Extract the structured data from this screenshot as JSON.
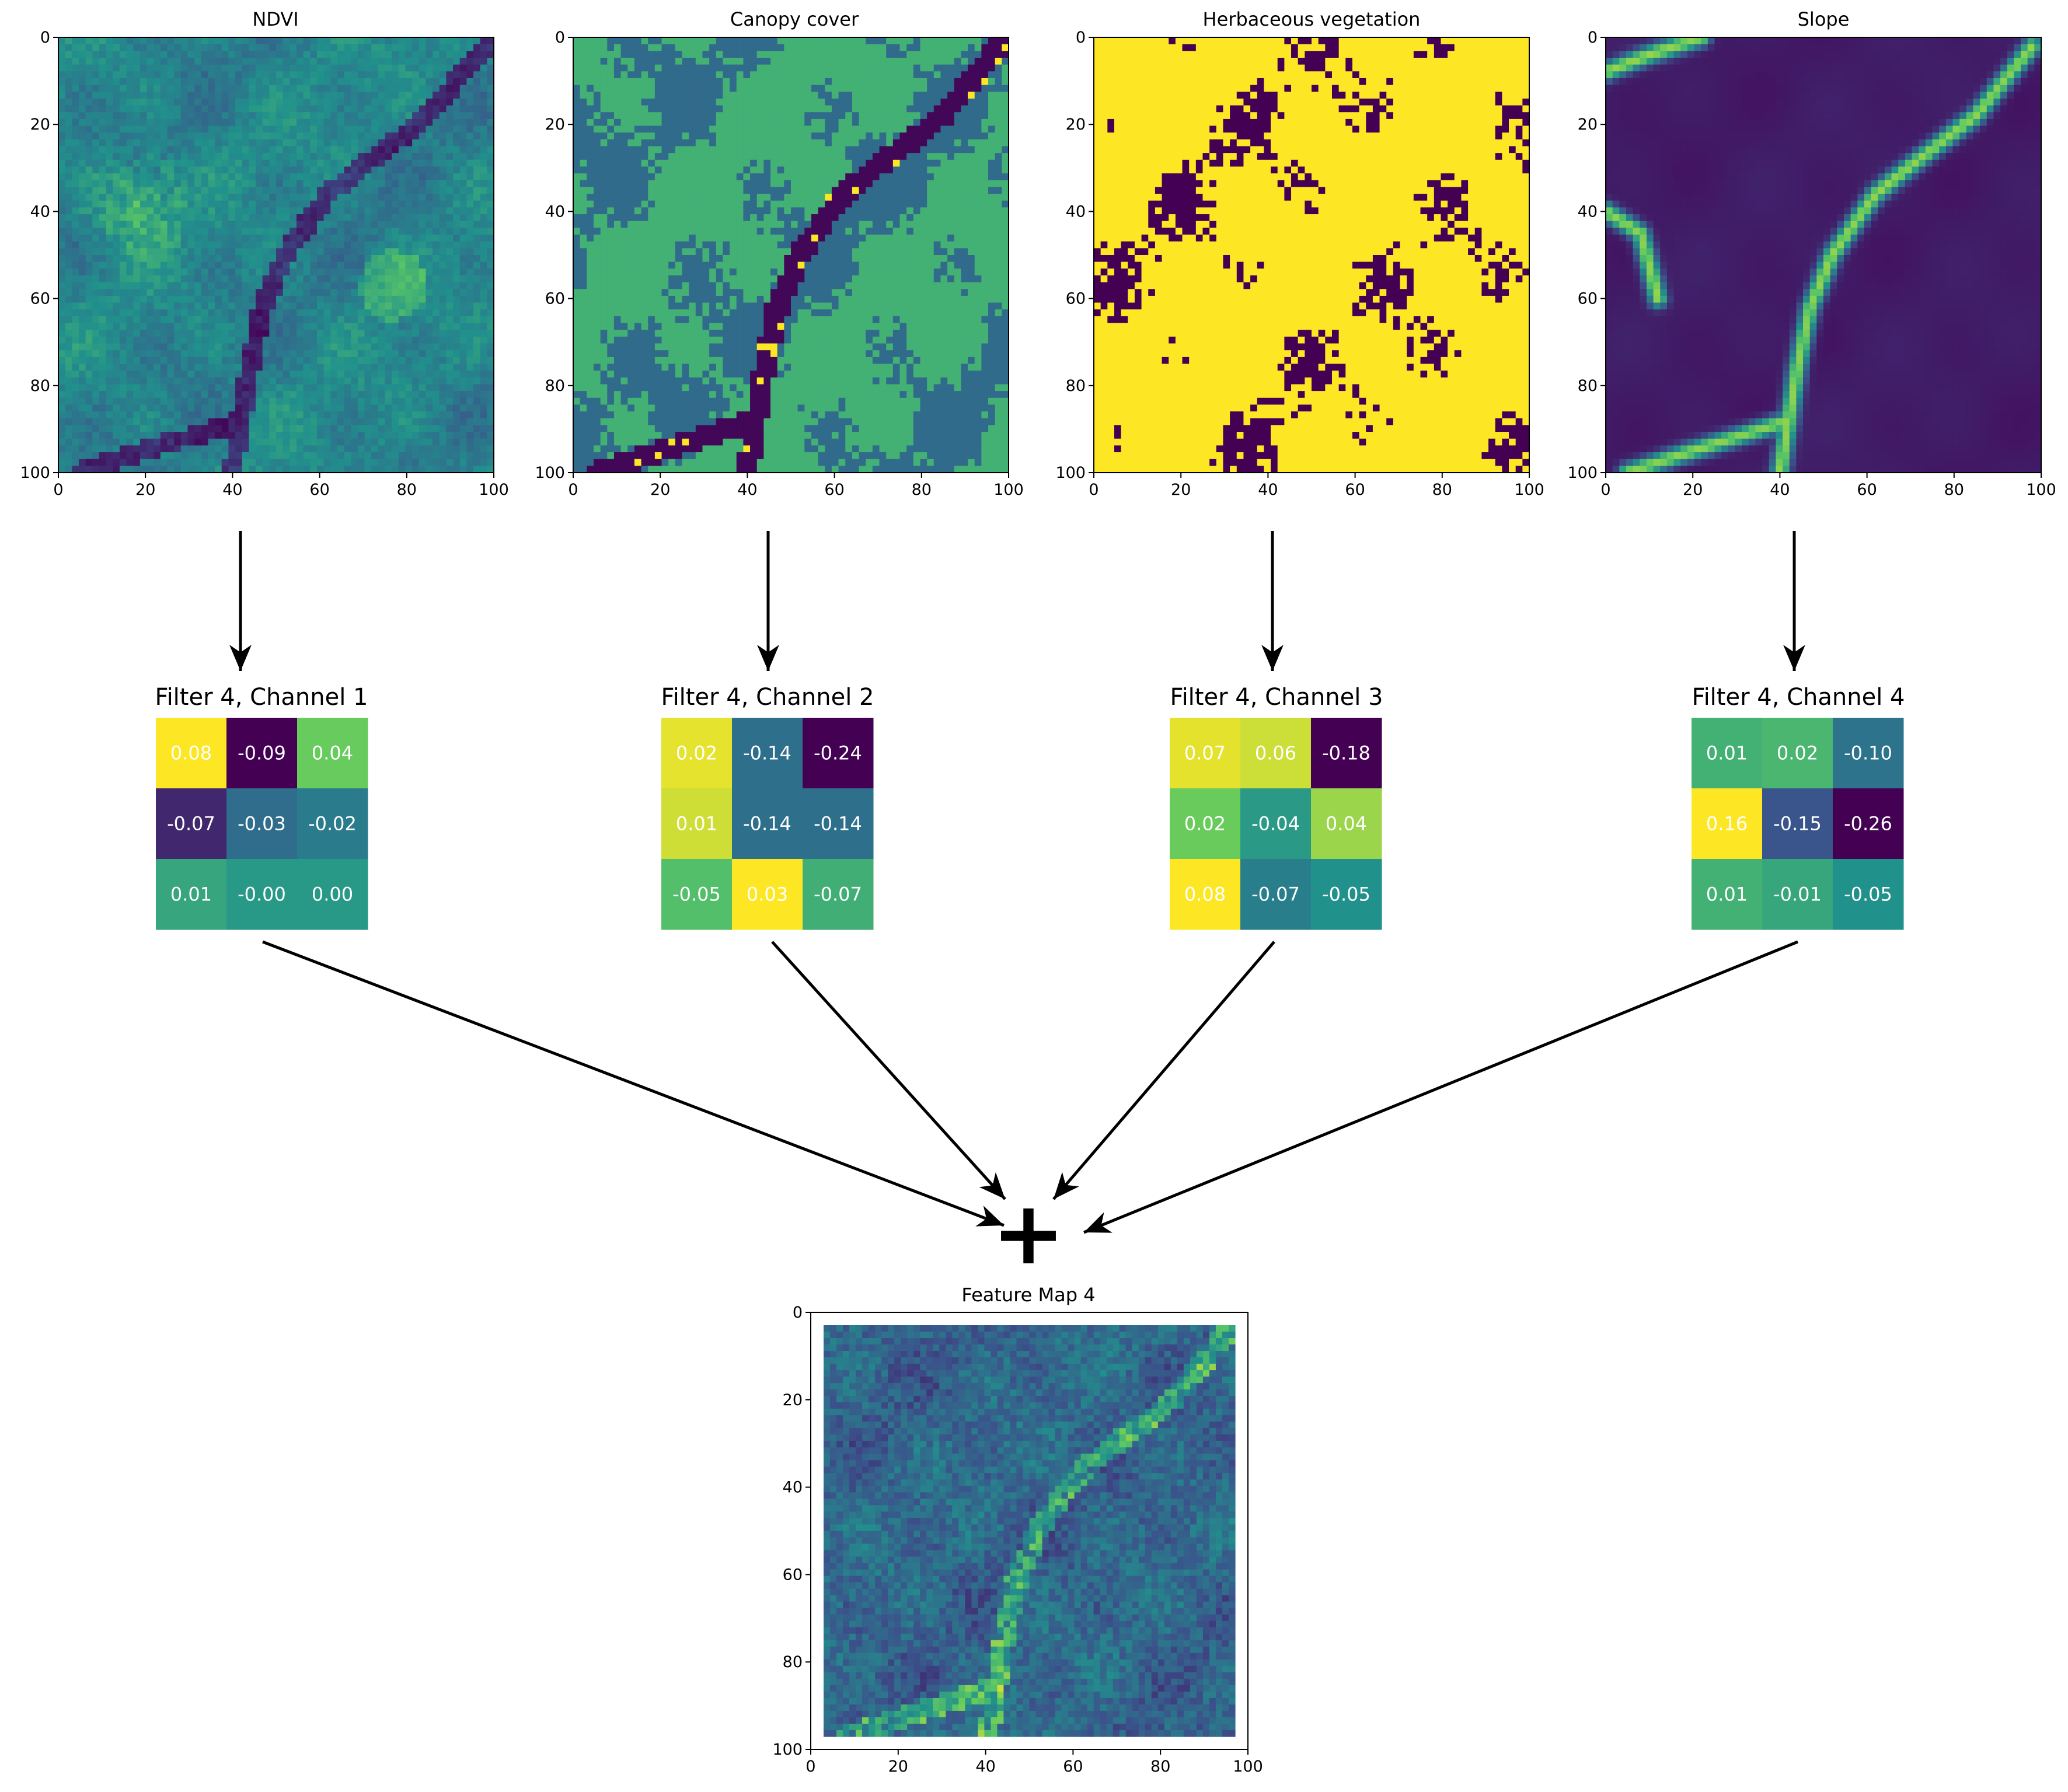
{
  "panels": [
    {
      "title": "NDVI",
      "kind": "continuous"
    },
    {
      "title": "Canopy cover",
      "kind": "categorical"
    },
    {
      "title": "Herbaceous vegetation",
      "kind": "binary"
    },
    {
      "title": "Slope",
      "kind": "ridge"
    }
  ],
  "axis_ticks": [
    "0",
    "20",
    "40",
    "60",
    "80",
    "100"
  ],
  "filters": [
    {
      "title": "Filter 4, Channel 1",
      "values": [
        [
          "0.08",
          "-0.09",
          "0.04"
        ],
        [
          "-0.07",
          "-0.03",
          "-0.02"
        ],
        [
          "0.01",
          "-0.00",
          "0.00"
        ]
      ]
    },
    {
      "title": "Filter 4, Channel 2",
      "values": [
        [
          "0.02",
          "-0.14",
          "-0.24"
        ],
        [
          "0.01",
          "-0.14",
          "-0.14"
        ],
        [
          "-0.05",
          "0.03",
          "-0.07"
        ]
      ]
    },
    {
      "title": "Filter 4, Channel 3",
      "values": [
        [
          "0.07",
          "0.06",
          "-0.18"
        ],
        [
          "0.02",
          "-0.04",
          "0.04"
        ],
        [
          "0.08",
          "-0.07",
          "-0.05"
        ]
      ]
    },
    {
      "title": "Filter 4, Channel 4",
      "values": [
        [
          "0.01",
          "0.02",
          "-0.10"
        ],
        [
          "0.16",
          "-0.15",
          "-0.26"
        ],
        [
          "0.01",
          "-0.01",
          "-0.05"
        ]
      ]
    }
  ],
  "combine_symbol": "+",
  "feature_map": {
    "title": "Feature Map 4"
  },
  "colormap": {
    "name": "viridis",
    "stops": [
      "#440154",
      "#3b528b",
      "#21918c",
      "#5ec962",
      "#fde725"
    ]
  }
}
